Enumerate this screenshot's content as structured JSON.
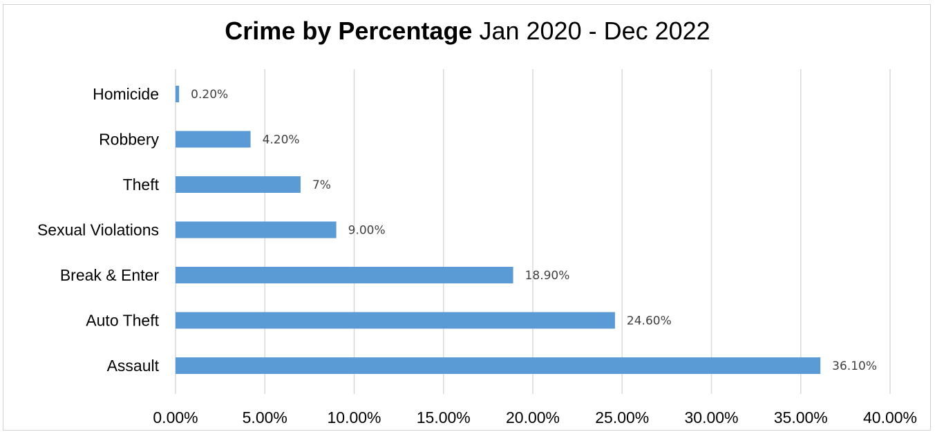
{
  "chart_data": {
    "type": "bar",
    "orientation": "horizontal",
    "title": "Crime by Percentage",
    "subtitle": "Jan 2020 - Dec 2022",
    "categories": [
      "Homicide",
      "Robbery",
      "Theft",
      "Sexual Violations",
      "Break & Enter",
      "Auto Theft",
      "Assault"
    ],
    "values": [
      0.2,
      4.2,
      7.0,
      9.0,
      18.9,
      24.6,
      36.1
    ],
    "data_labels": [
      "0.20%",
      "4.20%",
      "7%",
      "9.00%",
      "18.90%",
      "24.60%",
      "36.10%"
    ],
    "x_ticks": [
      "0.00%",
      "5.00%",
      "10.00%",
      "15.00%",
      "20.00%",
      "25.00%",
      "30.00%",
      "35.00%",
      "40.00%"
    ],
    "xlim": [
      0,
      40
    ],
    "xlabel": "",
    "ylabel": "",
    "grid": "vertical",
    "legend": "none",
    "bar_color": "#5b9bd5"
  }
}
